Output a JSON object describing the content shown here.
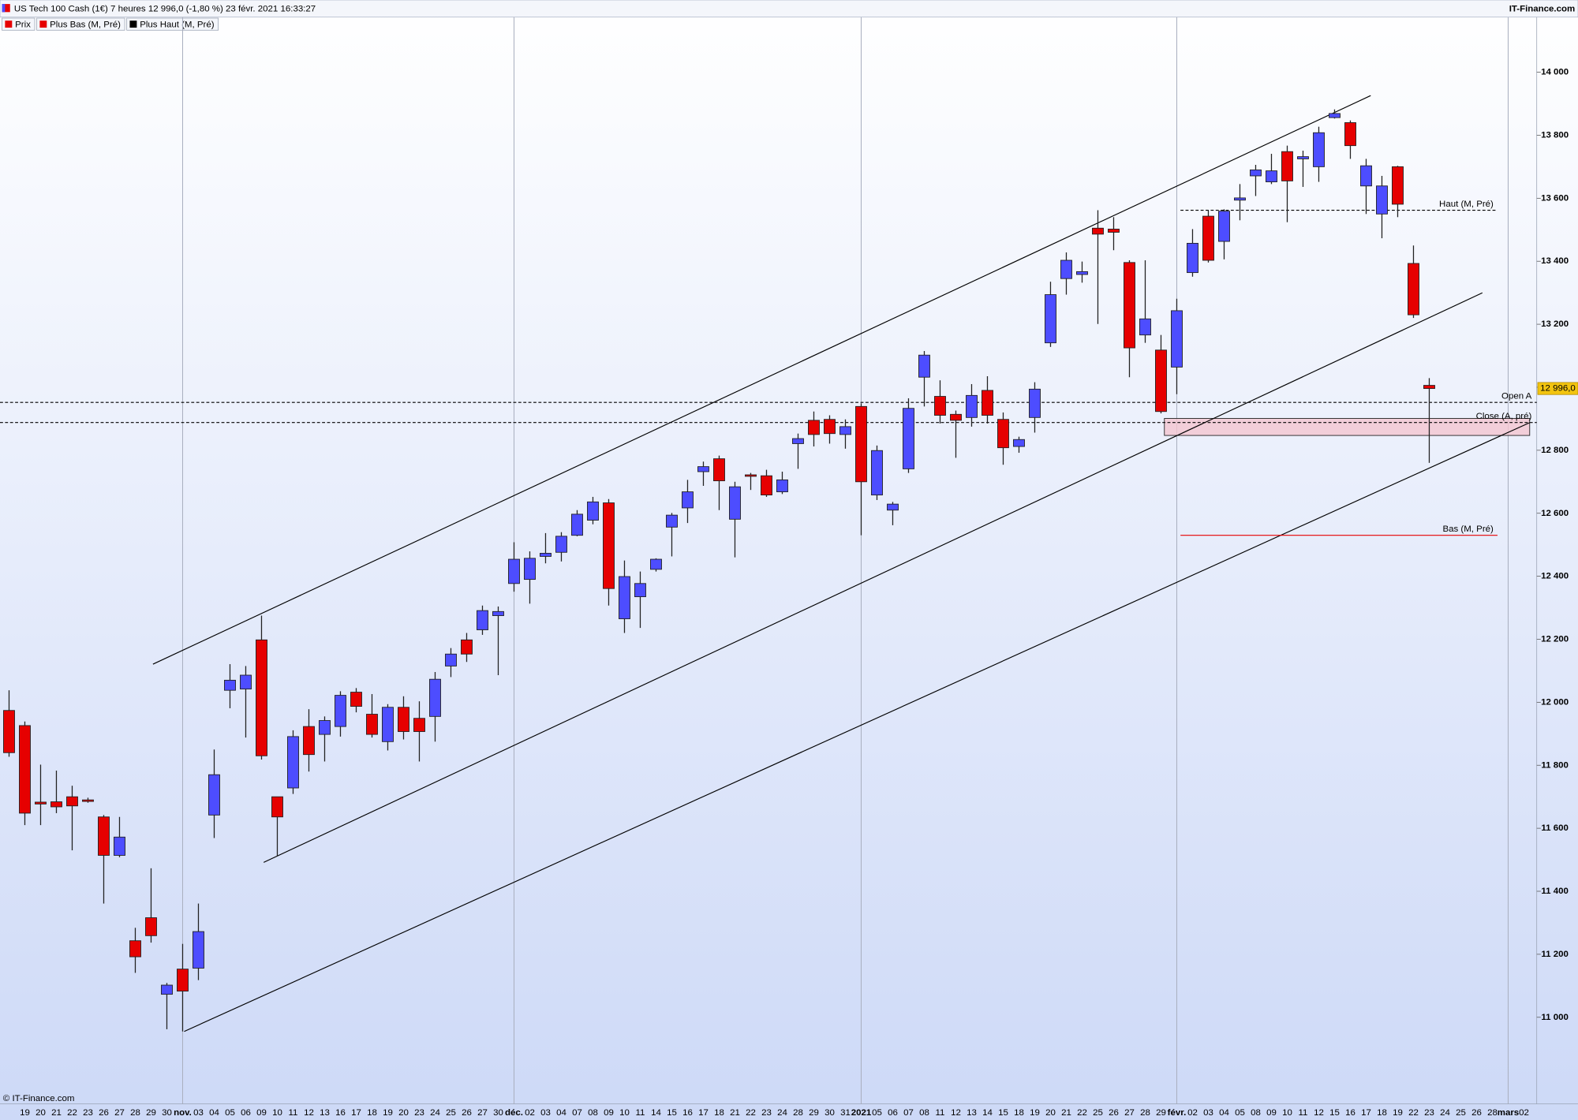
{
  "header": {
    "title": "US Tech 100 Cash (1€) 7 heures 12 996,0 (-1,80 %) 23 févr. 2021 16:33:27",
    "source": "IT-Finance.com"
  },
  "footer": "© IT-Finance.com",
  "chart_data": {
    "type": "candlestick",
    "up_color": "#4d4dff",
    "down_color": "#e60000",
    "legend": [
      {
        "name": "Prix",
        "color": "#e60000"
      },
      {
        "name": "Plus Bas (M, Pré)",
        "color": "#e60000"
      },
      {
        "name": "Plus Haut (M, Pré)",
        "color": "#000000"
      }
    ],
    "categories": [
      null,
      "19",
      "20",
      "21",
      "22",
      "23",
      "26",
      "27",
      "28",
      "29",
      "30",
      "nov.",
      "03",
      "04",
      "05",
      "06",
      "09",
      "10",
      "11",
      "12",
      "13",
      "16",
      "17",
      "18",
      "19",
      "20",
      "23",
      "24",
      "25",
      "26",
      "27",
      "30",
      "déc.",
      "02",
      "03",
      "04",
      "07",
      "08",
      "09",
      "10",
      "11",
      "14",
      "15",
      "16",
      "17",
      "18",
      "21",
      "22",
      "23",
      "24",
      "28",
      "29",
      "30",
      "31",
      "2021",
      "05",
      "06",
      "07",
      "08",
      "11",
      "12",
      "13",
      "14",
      "15",
      "18",
      "19",
      "20",
      "21",
      "22",
      "25",
      "26",
      "27",
      "28",
      "29",
      "févr.",
      "02",
      "03",
      "04",
      "05",
      "08",
      "09",
      "10",
      "11",
      "12",
      "15",
      "16",
      "17",
      "18",
      "19",
      "22",
      "23",
      "24",
      "25",
      "26",
      "28",
      "mars",
      "02"
    ],
    "series": [
      {
        "name": "Prix",
        "open": [
          11974,
          11926,
          11683,
          11684,
          11700,
          11690,
          11636,
          11514,
          11243,
          11316,
          11073,
          11153,
          11156,
          11642,
          12038,
          12042,
          12198,
          11700,
          11728,
          11923,
          11898,
          11923,
          12032,
          11962,
          11875,
          11984,
          11949,
          11955,
          12115,
          12198,
          12230,
          12275,
          12377,
          12390,
          12463,
          12476,
          12530,
          12578,
          12633,
          12265,
          12335,
          12422,
          12556,
          12617,
          12732,
          12773,
          12581,
          12722,
          12719,
          12668,
          12821,
          12895,
          12898,
          12850,
          12939,
          12658,
          12610,
          12741,
          13032,
          12971,
          12914,
          12904,
          12990,
          12898,
          12812,
          12904,
          13141,
          13345,
          13358,
          13505,
          13502,
          13396,
          13166,
          13118,
          13064,
          13364,
          13543,
          13463,
          13594,
          13671,
          13652,
          13748,
          13725,
          13700,
          13856,
          13840,
          13639,
          13550,
          13700,
          13393,
          13006,
          null,
          null,
          null,
          null,
          null,
          null
        ],
        "high": [
          12038,
          11939,
          11802,
          11783,
          11735,
          11697,
          11642,
          11636,
          11284,
          11473,
          11109,
          11233,
          11361,
          11850,
          12121,
          12115,
          12275,
          11700,
          11911,
          11978,
          11955,
          12035,
          12045,
          12026,
          11994,
          12019,
          12003,
          12096,
          12172,
          12220,
          12307,
          12304,
          12508,
          12479,
          12537,
          12540,
          12610,
          12652,
          12645,
          12450,
          12415,
          12457,
          12601,
          12706,
          12764,
          12783,
          12700,
          12728,
          12738,
          12732,
          12853,
          12923,
          12911,
          12898,
          12949,
          12815,
          12636,
          12965,
          13115,
          13022,
          12926,
          13010,
          13035,
          12920,
          12843,
          13016,
          13335,
          13428,
          13399,
          13562,
          13540,
          13403,
          13403,
          13166,
          13281,
          13502,
          13562,
          13565,
          13645,
          13706,
          13741,
          13767,
          13751,
          13827,
          13882,
          13847,
          13725,
          13671,
          13703,
          13450,
          13029,
          null,
          null,
          null,
          null,
          null,
          null
        ],
        "low": [
          11827,
          11610,
          11610,
          11648,
          11530,
          11681,
          11361,
          11508,
          11141,
          11237,
          10962,
          10955,
          11118,
          11569,
          11981,
          11888,
          11818,
          11511,
          11709,
          11780,
          11812,
          11891,
          11968,
          11888,
          11847,
          11882,
          11812,
          11875,
          12080,
          12128,
          12214,
          12086,
          12351,
          12313,
          12441,
          12447,
          12527,
          12565,
          12307,
          12220,
          12236,
          12415,
          12463,
          12569,
          12687,
          12610,
          12460,
          12674,
          12652,
          12661,
          12741,
          12812,
          12821,
          12805,
          12530,
          12642,
          12562,
          12728,
          12939,
          12885,
          12776,
          12875,
          12885,
          12754,
          12792,
          12856,
          13128,
          13294,
          13332,
          13201,
          13435,
          13032,
          13141,
          12917,
          12978,
          13351,
          13396,
          13406,
          13530,
          13607,
          13645,
          13524,
          13636,
          13652,
          13853,
          13725,
          13550,
          13473,
          13540,
          13220,
          12760,
          null,
          null,
          null,
          null,
          null,
          null
        ],
        "close": [
          11840,
          11648,
          11677,
          11668,
          11671,
          11688,
          11514,
          11572,
          11192,
          11259,
          11102,
          11083,
          11272,
          11770,
          12070,
          12086,
          11830,
          11636,
          11891,
          11834,
          11942,
          12022,
          11987,
          11898,
          11984,
          11907,
          11907,
          12073,
          12153,
          12153,
          12291,
          12288,
          12454,
          12457,
          12473,
          12527,
          12597,
          12636,
          12361,
          12399,
          12377,
          12454,
          12594,
          12668,
          12748,
          12703,
          12684,
          12719,
          12658,
          12706,
          12837,
          12850,
          12853,
          12875,
          12700,
          12799,
          12629,
          12933,
          13102,
          12911,
          12895,
          12974,
          12911,
          12808,
          12834,
          12994,
          13294,
          13403,
          13367,
          13486,
          13492,
          13125,
          13217,
          12923,
          13243,
          13457,
          13403,
          13559,
          13601,
          13690,
          13687,
          13655,
          13732,
          13808,
          13869,
          13767,
          13703,
          13639,
          13581,
          13230,
          12996,
          null,
          null,
          null,
          null,
          null,
          null
        ]
      }
    ],
    "ylim": [
      10725,
      14175
    ],
    "yticks": [
      {
        "value": 11000,
        "label": "11 000"
      },
      {
        "value": 11200,
        "label": "11 200"
      },
      {
        "value": 11400,
        "label": "11 400"
      },
      {
        "value": 11600,
        "label": "11 600"
      },
      {
        "value": 11800,
        "label": "11 800"
      },
      {
        "value": 12000,
        "label": "12 000"
      },
      {
        "value": 12200,
        "label": "12 200"
      },
      {
        "value": 12400,
        "label": "12 400"
      },
      {
        "value": 12600,
        "label": "12 600"
      },
      {
        "value": 12800,
        "label": "12 800"
      },
      {
        "value": 13000,
        "label": "13 000"
      },
      {
        "value": 13200,
        "label": "13 200"
      },
      {
        "value": 13400,
        "label": "13 400"
      },
      {
        "value": 13600,
        "label": "13 600"
      },
      {
        "value": 13800,
        "label": "13 800"
      },
      {
        "value": 14000,
        "label": "14 000"
      }
    ],
    "last_price": {
      "value": 12996,
      "label": "12 996,0"
    },
    "reference_lines": [
      {
        "label": "Open A",
        "value": 12952,
        "color": "#000000",
        "dashed": true
      },
      {
        "label": "Close (A, pré)",
        "value": 12888,
        "color": "#000000",
        "dashed": true
      },
      {
        "label": "Haut (M, Pré)",
        "value": 13562,
        "color": "#000000",
        "dashed": true
      },
      {
        "label": "Bas (M, Pré)",
        "value": 12530,
        "color": "#e60000",
        "dashed": false
      }
    ],
    "zone": {
      "from": 12847,
      "to": 12901,
      "color": "#f4c6cf"
    }
  }
}
